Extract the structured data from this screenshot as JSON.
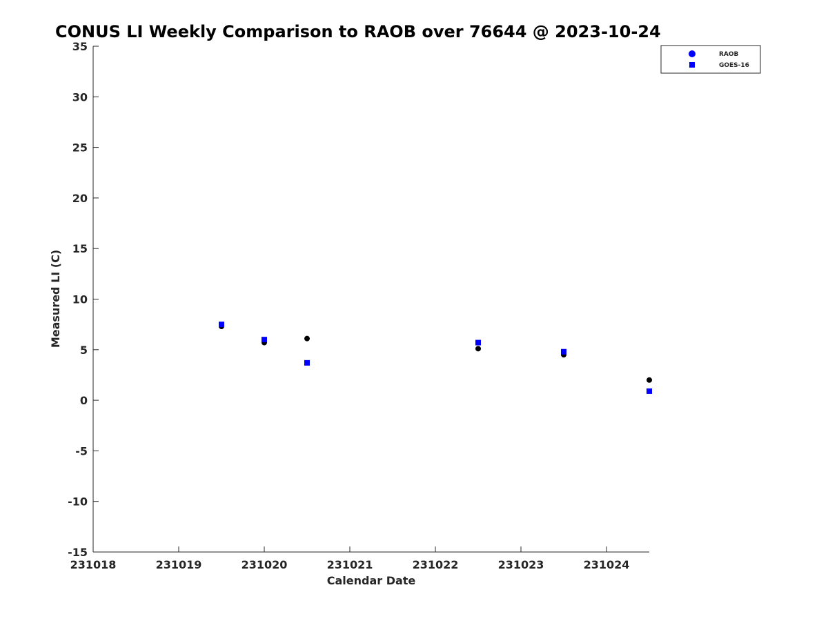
{
  "chart_data": {
    "type": "scatter",
    "title": "CONUS LI Weekly Comparison to RAOB over 76644 @ 2023-10-24",
    "xlabel": "Calendar Date",
    "ylabel": "Measured LI (C)",
    "x_tick_labels": [
      "231018",
      "231019",
      "231020",
      "231021",
      "231022",
      "231023",
      "231024"
    ],
    "y_tick_labels": [
      "-15",
      "-10",
      "-5",
      "0",
      "5",
      "10",
      "15",
      "20",
      "25",
      "30",
      "35"
    ],
    "xlim": [
      0,
      6.5
    ],
    "ylim": [
      -15,
      35
    ],
    "grid": false,
    "legend_position": "top-right",
    "series": [
      {
        "name": "RAOB",
        "marker": "circle",
        "color": "#000000",
        "legend_color": "#0000ff",
        "x": [
          1.5,
          2.0,
          2.5,
          4.5,
          5.5,
          6.5
        ],
        "y": [
          7.3,
          5.7,
          6.1,
          5.1,
          4.5,
          2.0
        ]
      },
      {
        "name": "GOES-16",
        "marker": "square",
        "color": "#0000ff",
        "x": [
          1.5,
          2.0,
          2.5,
          4.5,
          5.5,
          6.5
        ],
        "y": [
          7.5,
          6.0,
          3.7,
          5.7,
          4.8,
          0.9
        ]
      }
    ]
  }
}
